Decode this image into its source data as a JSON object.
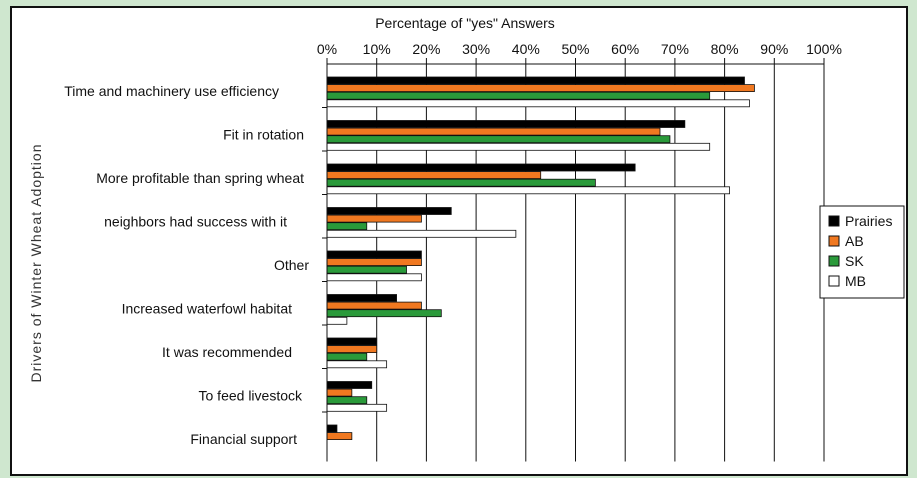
{
  "chart_data": {
    "type": "bar",
    "orientation": "horizontal",
    "title": "",
    "xlabel": "Percentage of \"yes\" Answers",
    "ylabel": "Drivers of Winter Wheat Adoption",
    "xlim": [
      0,
      100
    ],
    "x_ticks": [
      "0%",
      "10%",
      "20%",
      "30%",
      "40%",
      "50%",
      "60%",
      "70%",
      "80%",
      "90%",
      "100%"
    ],
    "x_axis_position": "top",
    "grid": "vertical",
    "legend_position": "right",
    "categories": [
      "Time and machinery use efficiency",
      "Fit in rotation",
      "More profitable than spring wheat",
      "neighbors had success with it",
      "Other",
      "Increased waterfowl habitat",
      "It was recommended",
      "To feed livestock",
      "Financial support"
    ],
    "series": [
      {
        "name": "Prairies",
        "color": "#000000",
        "values": [
          84,
          72,
          62,
          25,
          19,
          14,
          10,
          9,
          2
        ]
      },
      {
        "name": "AB",
        "color": "#f07820",
        "values": [
          86,
          67,
          43,
          19,
          19,
          19,
          10,
          5,
          5
        ]
      },
      {
        "name": "SK",
        "color": "#2a9a3a",
        "values": [
          77,
          69,
          54,
          8,
          16,
          23,
          8,
          8,
          0
        ]
      },
      {
        "name": "MB",
        "color": "#ffffff",
        "values": [
          85,
          77,
          81,
          38,
          19,
          4,
          12,
          12,
          0
        ]
      }
    ]
  }
}
